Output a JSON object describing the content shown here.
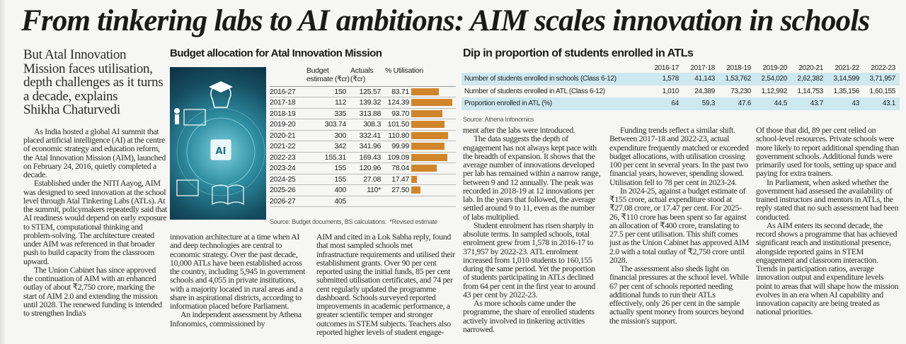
{
  "headline": "From tinkering labs to AI ambitions: AIM scales innovation in schools",
  "deck": {
    "text": "But Atal Innovation Mission faces utilisation, depth challenges as it turns a decade, explains",
    "author": "Shikha Chaturvedi"
  },
  "budget": {
    "title": "Budget allocation for Atal Innovation Mission",
    "headers": [
      "",
      "Budget estimate (₹cr)",
      "Actuals (₹cr)",
      "% Utilisation"
    ],
    "rows": [
      {
        "year": "2016-27",
        "be": "150",
        "actual": "125.57",
        "util": "83.71",
        "util_value": 83.71
      },
      {
        "year": "2017-18",
        "be": "112",
        "actual": "139.32",
        "util": "124.39",
        "util_value": 124.39
      },
      {
        "year": "2018-19",
        "be": "335",
        "actual": "313.88",
        "util": "93.70",
        "util_value": 93.7
      },
      {
        "year": "2019-20",
        "be": "303.74",
        "actual": "308.3",
        "util": "101.50",
        "util_value": 101.5
      },
      {
        "year": "2020-21",
        "be": "300",
        "actual": "332.41",
        "util": "110.80",
        "util_value": 110.8
      },
      {
        "year": "2021-22",
        "be": "342",
        "actual": "341.96",
        "util": "99.99",
        "util_value": 99.99
      },
      {
        "year": "2022-23",
        "be": "155.31",
        "actual": "169.43",
        "util": "109.09",
        "util_value": 109.09
      },
      {
        "year": "2023-24",
        "be": "155",
        "actual": "120.96",
        "util": "78.04",
        "util_value": 78.04
      },
      {
        "year": "2024-25",
        "be": "155",
        "actual": "27.08",
        "util": "17.47",
        "util_value": 17.47
      },
      {
        "year": "2025-26",
        "be": "400",
        "actual": "110*",
        "util": "27.50",
        "util_value": 27.5
      },
      {
        "year": "2026-27",
        "be": "405",
        "actual": "",
        "util": "",
        "util_value": null
      }
    ],
    "bar_color": "#d0852a",
    "source": "Source: Budget documents, BS calculations.",
    "note": "*Revised estimate",
    "illustration_text": "AI"
  },
  "enrol": {
    "title": "Dip in proportion of students enrolled in ATLs",
    "years": [
      "2016-17",
      "2017-18",
      "2018-19",
      "2019-20",
      "2020-21",
      "2021-22",
      "2022-23"
    ],
    "rows": [
      {
        "label": "Number of students enrolled in schools (Class 6-12)",
        "values": [
          "1,578",
          "41,143",
          "1,53,762",
          "2,54,020",
          "2,62,382",
          "3,14,599",
          "3,71,957"
        ]
      },
      {
        "label": "Number of students enrolled in ATL (Class 6-12)",
        "values": [
          "1,010",
          "24,389",
          "73,230",
          "1,12,992",
          "1,14,753",
          "1,35,156",
          "1,60,155"
        ]
      },
      {
        "label": "Proportion enrolled in ATL (%)",
        "values": [
          "64",
          "59.3",
          "47.6",
          "44.5",
          "43.7",
          "43",
          "43.1"
        ]
      }
    ],
    "band_color": "#cde8ef",
    "source": "Source: Athena Infonomics"
  },
  "columns": [
    {
      "paras": [
        {
          "cont": false,
          "text": "As India hosted a global AI summit that placed artificial intelligence (AI) at the centre of economic strategy and education reform, the Atal Innovation Mission (AIM), launched on February 24, 2016, quietly completed a decade."
        },
        {
          "cont": false,
          "text": "Established under the NITI Aayog, AIM was designed to seed innovation at the school level through Atal Tinkering Labs (ATLs). At the summit, policymakers repeatedly said that AI readiness would depend on early exposure to STEM, computational thinking and problem-solving. The architecture created under AIM was referenced in that broader push to build capacity from the classroom upward."
        },
        {
          "cont": false,
          "text": "The Union Cabinet has since approved the continuation of AIM with an enhanced outlay of about ₹2,750 crore, marking the start of AIM 2.0 and extending the mission until 2028. The renewed funding is intended to strengthen India's"
        }
      ]
    },
    {
      "paras": [
        {
          "cont": true,
          "text": "innovation architecture at a time when AI and deep technologies are central to economic strategy. Over the past decade, 10,000 ATLs have been established across the country, including 5,945 in government schools and 4,055 in private institutions, with a majority located in rural areas and a share in aspirational districts, according to information placed before Parliament."
        },
        {
          "cont": false,
          "text": "An independent assessment by Athena Infonomics, commissioned by"
        }
      ]
    },
    {
      "paras": [
        {
          "cont": true,
          "text": "AIM and cited in a Lok Sabha reply, found that most sampled schools met infrastructure requirements and utilised their establishment grants. Over 90 per cent reported using the initial funds, 85 per cent submitted utilisation certificates, and 74 per cent regularly updated the programme dashboard. Schools surveyed reported improvements in academic performance, a greater scientific temper and stronger outcomes in STEM subjects. Teachers also reported higher levels of student engage-"
        }
      ]
    },
    {
      "paras": [
        {
          "cont": true,
          "text": "ment after the labs were introduced."
        },
        {
          "cont": false,
          "text": "The data suggests the depth of engagement has not always kept pace with the breadth of expansion. It shows that the average number of innovations developed per lab has remained within a narrow range, between 9 and 12 annually. The peak was recorded in 2018-19 at 12 innovations per lab. In the years that followed, the average settled around 9 to 11, even as the number of labs multiplied."
        },
        {
          "cont": false,
          "text": "Student enrolment has risen sharply in absolute terms. In sampled schools, total enrolment grew from 1,578 in 2016-17 to 371,957 by 2022-23. ATL enrolment increased from 1,010 students to 160,155 during the same period. Yet the proportion of students participating in ATLs declined from 64 per cent in the first year to around 43 per cent by 2022-23."
        },
        {
          "cont": false,
          "text": "As more schools came under the programme, the share of enrolled students actively involved in tinkering activities narrowed."
        }
      ]
    },
    {
      "paras": [
        {
          "cont": false,
          "text": "Funding trends reflect a similar shift. Between 2017-18 and 2022-23, actual expenditure frequently matched or exceeded budget allocations, with utilisation crossing 100 per cent in several years. In the past two financial years, however, spending slowed. Utilisation fell to 78 per cent in 2023-24."
        },
        {
          "cont": false,
          "text": "In 2024-25, against a budget estimate of ₹155 crore, actual expenditure stood at ₹27.08 crore, or 17.47 per cent. For 2025-26, ₹110 crore has been spent so far against an allocation of ₹400 crore, translating to 27.5 per cent utilisation. This shift comes just as the Union Cabinet has approved AIM 2.0 with a total outlay of ₹2,750 crore until 2028."
        },
        {
          "cont": false,
          "text": "The assessment also sheds light on financial pressures at the school level. While 67 per cent of schools reported needing additional funds to run their ATLs effectively, only 26 per cent in the sample actually spent money from sources beyond the mission's support."
        }
      ]
    },
    {
      "paras": [
        {
          "cont": true,
          "text": "Of those that did, 89 per cent relied on school-level resources. Private schools were more likely to report additional spending than government schools. Additional funds were primarily used for tools, setting up space and paying for extra trainers."
        },
        {
          "cont": false,
          "text": "In Parliament, when asked whether the government had assessed the availability of trained instructors and mentors in ATLs, the reply stated that no such assessment had been conducted."
        },
        {
          "cont": false,
          "text": "As AIM enters its second decade, the record shows a programme that has achieved significant reach and institutional presence, alongside reported gains in STEM engagement and classroom interaction. Trends in participation ratios, average innovation output and expenditure levels point to areas that will shape how the mission evolves in an era when AI capability and innovation capacity are being treated as national priorities."
        }
      ]
    }
  ]
}
